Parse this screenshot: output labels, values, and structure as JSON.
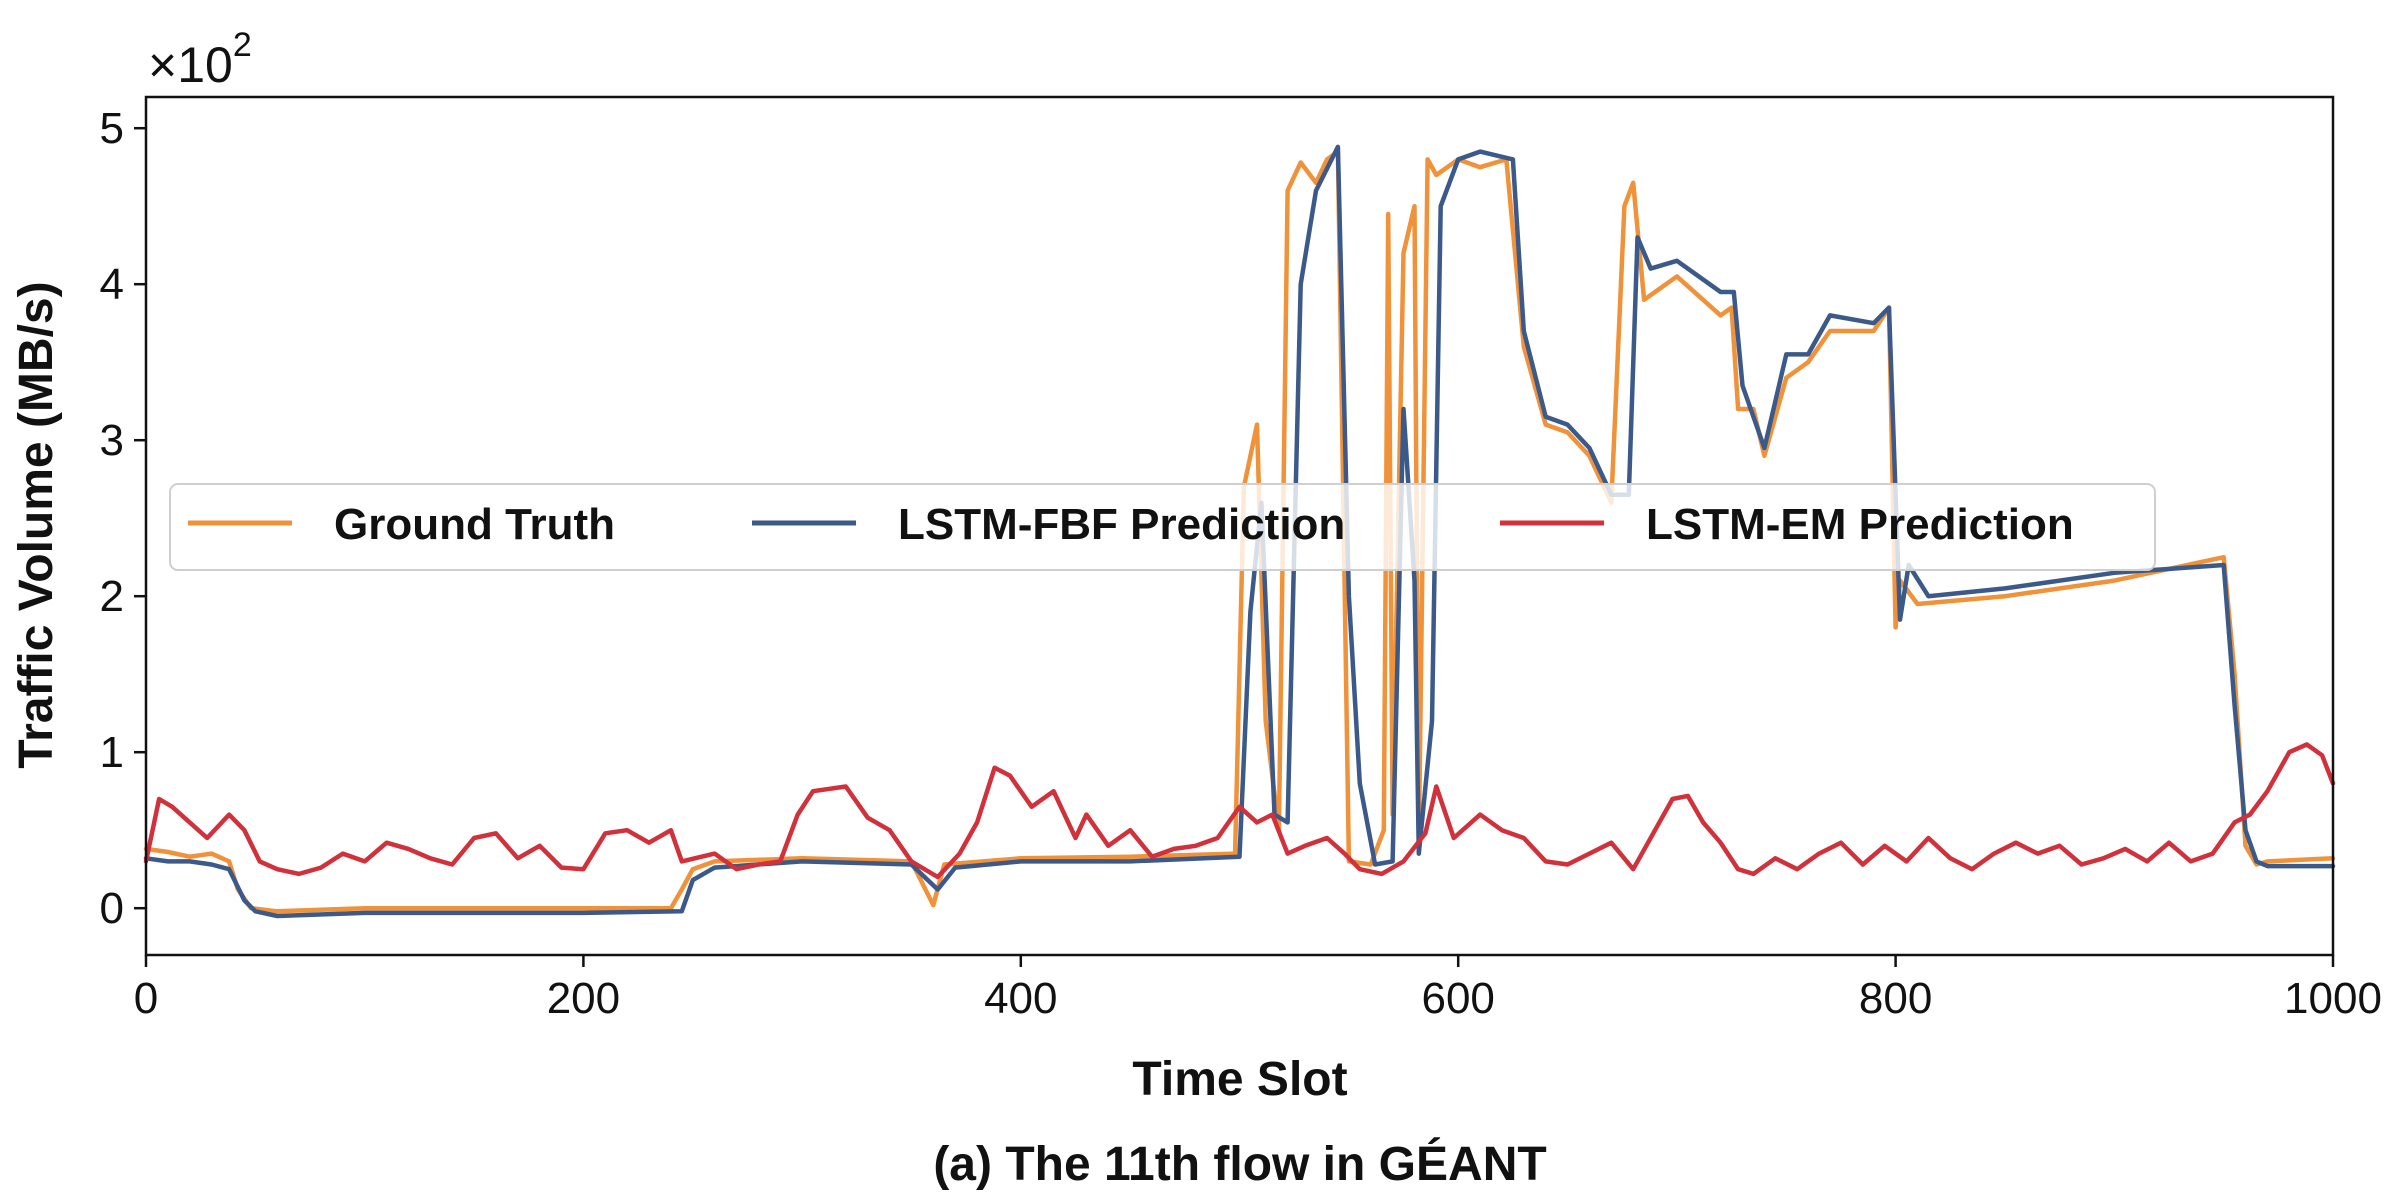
{
  "chart_data": {
    "type": "line",
    "xlabel": "Time Slot",
    "ylabel": "Traffic Volume (MB/s)",
    "caption": "(a) The 11th flow in GÉANT",
    "y_scale_label": "×10",
    "y_scale_exponent": "2",
    "xlim": [
      0,
      1000
    ],
    "ylim": [
      -0.3,
      5.2
    ],
    "x_ticks": [
      0,
      200,
      400,
      600,
      800,
      1000
    ],
    "y_ticks": [
      0,
      1,
      2,
      3,
      4,
      5
    ],
    "x_tick_labels": [
      "0",
      "200",
      "400",
      "600",
      "800",
      "1000"
    ],
    "y_tick_labels": [
      "0",
      "1",
      "2",
      "3",
      "4",
      "5"
    ],
    "grid": false,
    "legend": {
      "placement": "center-left",
      "columns": 3
    },
    "series": [
      {
        "name": "Ground Truth",
        "color": "#F0923A",
        "points": [
          [
            0,
            0.38
          ],
          [
            10,
            0.36
          ],
          [
            20,
            0.33
          ],
          [
            30,
            0.35
          ],
          [
            38,
            0.3
          ],
          [
            42,
            0.12
          ],
          [
            48,
            0.0
          ],
          [
            60,
            -0.02
          ],
          [
            100,
            0.0
          ],
          [
            150,
            0.0
          ],
          [
            200,
            0.0
          ],
          [
            240,
            0.0
          ],
          [
            245,
            0.12
          ],
          [
            250,
            0.25
          ],
          [
            260,
            0.3
          ],
          [
            300,
            0.32
          ],
          [
            350,
            0.3
          ],
          [
            360,
            0.02
          ],
          [
            365,
            0.28
          ],
          [
            400,
            0.32
          ],
          [
            450,
            0.33
          ],
          [
            498,
            0.35
          ],
          [
            502,
            2.7
          ],
          [
            508,
            3.1
          ],
          [
            512,
            1.2
          ],
          [
            518,
            0.5
          ],
          [
            522,
            4.6
          ],
          [
            528,
            4.78
          ],
          [
            535,
            4.65
          ],
          [
            540,
            4.8
          ],
          [
            545,
            4.85
          ],
          [
            550,
            0.3
          ],
          [
            560,
            0.28
          ],
          [
            566,
            0.5
          ],
          [
            568,
            4.45
          ],
          [
            570,
            0.6
          ],
          [
            575,
            4.2
          ],
          [
            580,
            4.5
          ],
          [
            582,
            0.4
          ],
          [
            586,
            4.8
          ],
          [
            590,
            4.7
          ],
          [
            600,
            4.8
          ],
          [
            610,
            4.75
          ],
          [
            622,
            4.8
          ],
          [
            630,
            3.6
          ],
          [
            640,
            3.1
          ],
          [
            650,
            3.05
          ],
          [
            660,
            2.9
          ],
          [
            670,
            2.6
          ],
          [
            676,
            4.5
          ],
          [
            680,
            4.65
          ],
          [
            685,
            3.9
          ],
          [
            700,
            4.05
          ],
          [
            720,
            3.8
          ],
          [
            725,
            3.85
          ],
          [
            728,
            3.2
          ],
          [
            735,
            3.2
          ],
          [
            740,
            2.9
          ],
          [
            750,
            3.4
          ],
          [
            760,
            3.5
          ],
          [
            770,
            3.7
          ],
          [
            790,
            3.7
          ],
          [
            797,
            3.85
          ],
          [
            800,
            1.8
          ],
          [
            802,
            2.1
          ],
          [
            810,
            1.95
          ],
          [
            850,
            2.0
          ],
          [
            900,
            2.1
          ],
          [
            950,
            2.25
          ],
          [
            955,
            1.5
          ],
          [
            960,
            0.4
          ],
          [
            965,
            0.28
          ],
          [
            970,
            0.3
          ],
          [
            1000,
            0.32
          ]
        ]
      },
      {
        "name": "LSTM-FBF Prediction",
        "color": "#3B5A8A",
        "points": [
          [
            0,
            0.32
          ],
          [
            10,
            0.3
          ],
          [
            20,
            0.3
          ],
          [
            30,
            0.28
          ],
          [
            38,
            0.25
          ],
          [
            45,
            0.05
          ],
          [
            50,
            -0.02
          ],
          [
            60,
            -0.05
          ],
          [
            100,
            -0.03
          ],
          [
            150,
            -0.03
          ],
          [
            200,
            -0.03
          ],
          [
            245,
            -0.02
          ],
          [
            250,
            0.18
          ],
          [
            260,
            0.26
          ],
          [
            300,
            0.3
          ],
          [
            350,
            0.28
          ],
          [
            362,
            0.12
          ],
          [
            370,
            0.26
          ],
          [
            400,
            0.3
          ],
          [
            450,
            0.3
          ],
          [
            500,
            0.33
          ],
          [
            505,
            1.9
          ],
          [
            510,
            2.6
          ],
          [
            516,
            0.6
          ],
          [
            522,
            0.55
          ],
          [
            528,
            4.0
          ],
          [
            535,
            4.6
          ],
          [
            545,
            4.88
          ],
          [
            550,
            2.0
          ],
          [
            555,
            0.8
          ],
          [
            562,
            0.28
          ],
          [
            570,
            0.3
          ],
          [
            575,
            3.2
          ],
          [
            580,
            2.1
          ],
          [
            582,
            0.35
          ],
          [
            588,
            1.2
          ],
          [
            592,
            4.5
          ],
          [
            600,
            4.8
          ],
          [
            610,
            4.85
          ],
          [
            625,
            4.8
          ],
          [
            630,
            3.7
          ],
          [
            640,
            3.15
          ],
          [
            650,
            3.1
          ],
          [
            660,
            2.95
          ],
          [
            670,
            2.65
          ],
          [
            678,
            2.65
          ],
          [
            682,
            4.3
          ],
          [
            688,
            4.1
          ],
          [
            700,
            4.15
          ],
          [
            720,
            3.95
          ],
          [
            726,
            3.95
          ],
          [
            730,
            3.35
          ],
          [
            740,
            2.95
          ],
          [
            750,
            3.55
          ],
          [
            760,
            3.55
          ],
          [
            770,
            3.8
          ],
          [
            790,
            3.75
          ],
          [
            797,
            3.85
          ],
          [
            802,
            1.85
          ],
          [
            806,
            2.2
          ],
          [
            815,
            2.0
          ],
          [
            850,
            2.05
          ],
          [
            900,
            2.15
          ],
          [
            950,
            2.2
          ],
          [
            955,
            1.3
          ],
          [
            960,
            0.5
          ],
          [
            965,
            0.3
          ],
          [
            970,
            0.27
          ],
          [
            1000,
            0.27
          ]
        ]
      },
      {
        "name": "LSTM-EM Prediction",
        "color": "#D0313B",
        "points": [
          [
            0,
            0.3
          ],
          [
            6,
            0.7
          ],
          [
            12,
            0.65
          ],
          [
            20,
            0.55
          ],
          [
            28,
            0.45
          ],
          [
            38,
            0.6
          ],
          [
            45,
            0.5
          ],
          [
            52,
            0.3
          ],
          [
            60,
            0.25
          ],
          [
            70,
            0.22
          ],
          [
            80,
            0.26
          ],
          [
            90,
            0.35
          ],
          [
            100,
            0.3
          ],
          [
            110,
            0.42
          ],
          [
            120,
            0.38
          ],
          [
            130,
            0.32
          ],
          [
            140,
            0.28
          ],
          [
            150,
            0.45
          ],
          [
            160,
            0.48
          ],
          [
            170,
            0.32
          ],
          [
            180,
            0.4
          ],
          [
            190,
            0.26
          ],
          [
            200,
            0.25
          ],
          [
            210,
            0.48
          ],
          [
            220,
            0.5
          ],
          [
            230,
            0.42
          ],
          [
            240,
            0.5
          ],
          [
            245,
            0.3
          ],
          [
            260,
            0.35
          ],
          [
            270,
            0.25
          ],
          [
            280,
            0.28
          ],
          [
            290,
            0.3
          ],
          [
            298,
            0.6
          ],
          [
            305,
            0.75
          ],
          [
            320,
            0.78
          ],
          [
            330,
            0.58
          ],
          [
            340,
            0.5
          ],
          [
            350,
            0.3
          ],
          [
            362,
            0.2
          ],
          [
            372,
            0.35
          ],
          [
            380,
            0.55
          ],
          [
            388,
            0.9
          ],
          [
            395,
            0.85
          ],
          [
            405,
            0.65
          ],
          [
            415,
            0.75
          ],
          [
            425,
            0.45
          ],
          [
            430,
            0.6
          ],
          [
            440,
            0.4
          ],
          [
            450,
            0.5
          ],
          [
            460,
            0.33
          ],
          [
            470,
            0.38
          ],
          [
            480,
            0.4
          ],
          [
            490,
            0.45
          ],
          [
            500,
            0.65
          ],
          [
            508,
            0.55
          ],
          [
            515,
            0.6
          ],
          [
            522,
            0.35
          ],
          [
            530,
            0.4
          ],
          [
            540,
            0.45
          ],
          [
            548,
            0.35
          ],
          [
            555,
            0.25
          ],
          [
            565,
            0.22
          ],
          [
            575,
            0.3
          ],
          [
            585,
            0.48
          ],
          [
            590,
            0.78
          ],
          [
            598,
            0.45
          ],
          [
            610,
            0.6
          ],
          [
            620,
            0.5
          ],
          [
            630,
            0.45
          ],
          [
            640,
            0.3
          ],
          [
            650,
            0.28
          ],
          [
            660,
            0.35
          ],
          [
            670,
            0.42
          ],
          [
            680,
            0.25
          ],
          [
            690,
            0.5
          ],
          [
            698,
            0.7
          ],
          [
            705,
            0.72
          ],
          [
            712,
            0.55
          ],
          [
            720,
            0.42
          ],
          [
            728,
            0.25
          ],
          [
            735,
            0.22
          ],
          [
            745,
            0.32
          ],
          [
            755,
            0.25
          ],
          [
            765,
            0.35
          ],
          [
            775,
            0.42
          ],
          [
            785,
            0.28
          ],
          [
            795,
            0.4
          ],
          [
            805,
            0.3
          ],
          [
            815,
            0.45
          ],
          [
            825,
            0.32
          ],
          [
            835,
            0.25
          ],
          [
            845,
            0.35
          ],
          [
            855,
            0.42
          ],
          [
            865,
            0.35
          ],
          [
            875,
            0.4
          ],
          [
            885,
            0.28
          ],
          [
            895,
            0.32
          ],
          [
            905,
            0.38
          ],
          [
            915,
            0.3
          ],
          [
            925,
            0.42
          ],
          [
            935,
            0.3
          ],
          [
            945,
            0.35
          ],
          [
            955,
            0.55
          ],
          [
            962,
            0.6
          ],
          [
            970,
            0.75
          ],
          [
            980,
            1.0
          ],
          [
            988,
            1.05
          ],
          [
            995,
            0.98
          ],
          [
            1000,
            0.8
          ]
        ]
      }
    ]
  }
}
